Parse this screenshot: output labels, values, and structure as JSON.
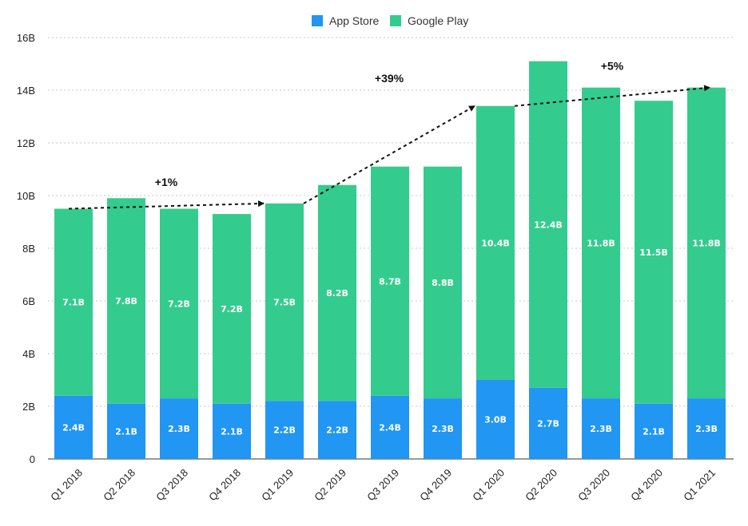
{
  "chart_data": {
    "type": "bar",
    "stacked": true,
    "categories": [
      "Q1 2018",
      "Q2 2018",
      "Q3 2018",
      "Q4 2018",
      "Q1 2019",
      "Q2 2019",
      "Q3 2019",
      "Q4 2019",
      "Q1 2020",
      "Q2 2020",
      "Q3 2020",
      "Q4 2020",
      "Q1 2021"
    ],
    "series": [
      {
        "name": "App Store",
        "color": "#2196F3",
        "values": [
          2.4,
          2.1,
          2.3,
          2.1,
          2.2,
          2.2,
          2.4,
          2.3,
          3.0,
          2.7,
          2.3,
          2.1,
          2.3
        ],
        "labels": [
          "2.4B",
          "2.1B",
          "2.3B",
          "2.1B",
          "2.2B",
          "2.2B",
          "2.4B",
          "2.3B",
          "3.0B",
          "2.7B",
          "2.3B",
          "2.1B",
          "2.3B"
        ]
      },
      {
        "name": "Google Play",
        "color": "#34CC8E",
        "values": [
          7.1,
          7.8,
          7.2,
          7.2,
          7.5,
          8.2,
          8.7,
          8.8,
          10.4,
          12.4,
          11.8,
          11.5,
          11.8
        ],
        "labels": [
          "7.1B",
          "7.8B",
          "7.2B",
          "7.2B",
          "7.5B",
          "8.2B",
          "8.7B",
          "8.8B",
          "10.4B",
          "12.4B",
          "11.8B",
          "11.5B",
          "11.8B"
        ]
      }
    ],
    "ylim": [
      0,
      16
    ],
    "yticks": [
      0,
      2,
      4,
      6,
      8,
      10,
      12,
      14,
      16
    ],
    "ytick_labels": [
      "0",
      "2B",
      "4B",
      "6B",
      "8B",
      "10B",
      "12B",
      "14B",
      "16B"
    ],
    "grid": "horizontal dotted",
    "legend_position": "top-center",
    "annotations": [
      {
        "text": "+1%",
        "from_category": "Q1 2018",
        "to_category": "Q1 2019"
      },
      {
        "text": "+39%",
        "from_category": "Q1 2019",
        "to_category": "Q1 2020"
      },
      {
        "text": "+5%",
        "from_category": "Q1 2020",
        "to_category": "Q1 2021"
      }
    ]
  }
}
